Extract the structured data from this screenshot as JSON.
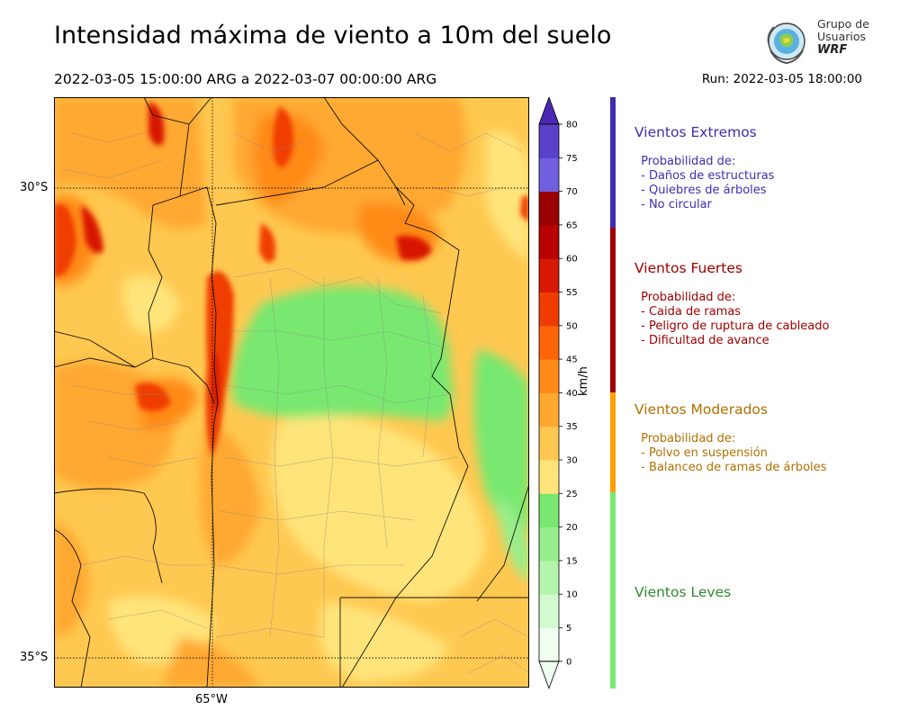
{
  "header": {
    "title": "Intensidad máxima de viento a 10m del suelo",
    "period": "2022-03-05 15:00:00 ARG  a  2022-03-07 00:00:00 ARG",
    "run": "Run: 2022-03-05 18:00:00"
  },
  "logo": {
    "line1": "Grupo de",
    "line2": "Usuarios",
    "line3": "WRF",
    "icon": "globe-logo-icon"
  },
  "map": {
    "lat_labels": [
      "30°S",
      "35°S"
    ],
    "lon_labels": [
      "65°W"
    ]
  },
  "colorbar": {
    "unit": "km/h",
    "ticks": [
      "0",
      "5",
      "10",
      "15",
      "20",
      "25",
      "30",
      "35",
      "40",
      "45",
      "50",
      "55",
      "60",
      "65",
      "70",
      "75",
      "80"
    ],
    "colors": [
      "#f0fff0",
      "#d4fad0",
      "#b6f5ae",
      "#96ef8c",
      "#78e870",
      "#ffe47a",
      "#ffc850",
      "#ffa830",
      "#ff8a18",
      "#ff6408",
      "#f03c00",
      "#d81800",
      "#b80000",
      "#9a0000",
      "#7060e0",
      "#5a40c8",
      "#4a28b4"
    ]
  },
  "legend": [
    {
      "title": "Vientos Extremos",
      "color": "#3f2db0",
      "details": [
        " Probabilidad de:",
        " - Daños de estructuras",
        " - Quiebres de árboles",
        " - No circular"
      ]
    },
    {
      "title": "Vientos Fuertes",
      "color": "#a00000",
      "details": [
        " Probabilidad de:",
        " - Caida de ramas",
        " - Peligro de ruptura de cableado",
        " - Dificultad de avance"
      ]
    },
    {
      "title": "Vientos Moderados",
      "color": "#b07000",
      "details": [
        " Probabilidad de:",
        " - Polvo en suspensión",
        " - Balanceo de ramas de árboles"
      ]
    },
    {
      "title": "Vientos Leves",
      "color": "#2f8a2f",
      "details": []
    }
  ]
}
